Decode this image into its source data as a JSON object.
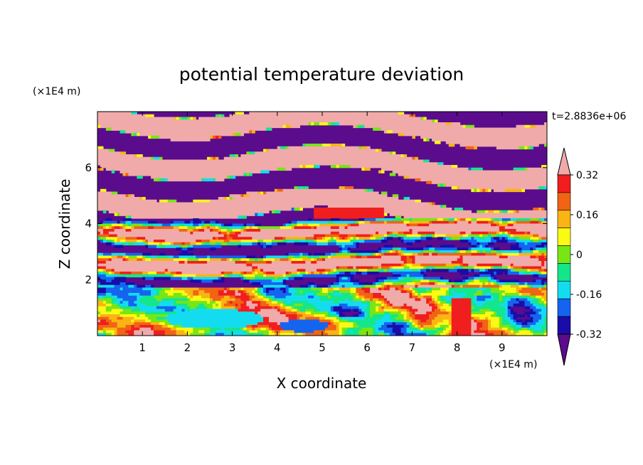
{
  "chart_data": {
    "type": "heatmap",
    "title": "potential temperature deviation",
    "xlabel": "X coordinate",
    "ylabel": "Z coordinate",
    "x_unit": "(×1E4 m)",
    "y_unit": "(×1E4 m)",
    "time_label": "t=2.8836e+06",
    "xlim": [
      0,
      10
    ],
    "ylim": [
      0,
      8
    ],
    "x_ticks": [
      "1",
      "2",
      "3",
      "4",
      "5",
      "6",
      "7",
      "8",
      "9"
    ],
    "y_ticks": [
      "2",
      "4",
      "6"
    ],
    "colorbar": {
      "tick_labels": [
        "0.32",
        "0.16",
        "0",
        "-0.16",
        "-0.32"
      ],
      "tick_values": [
        0.32,
        0.16,
        0,
        -0.16,
        -0.32
      ],
      "levels": [
        -0.4,
        -0.32,
        -0.24,
        -0.16,
        -0.08,
        0,
        0.08,
        0.16,
        0.24,
        0.32,
        0.4
      ],
      "colors": [
        "#5a0c8c",
        "#1a0ca8",
        "#1464f0",
        "#14dcf0",
        "#14e68c",
        "#78e614",
        "#fafa14",
        "#fab414",
        "#f06414",
        "#f01e1e",
        "#f0aaaa"
      ],
      "extend": "both"
    }
  }
}
